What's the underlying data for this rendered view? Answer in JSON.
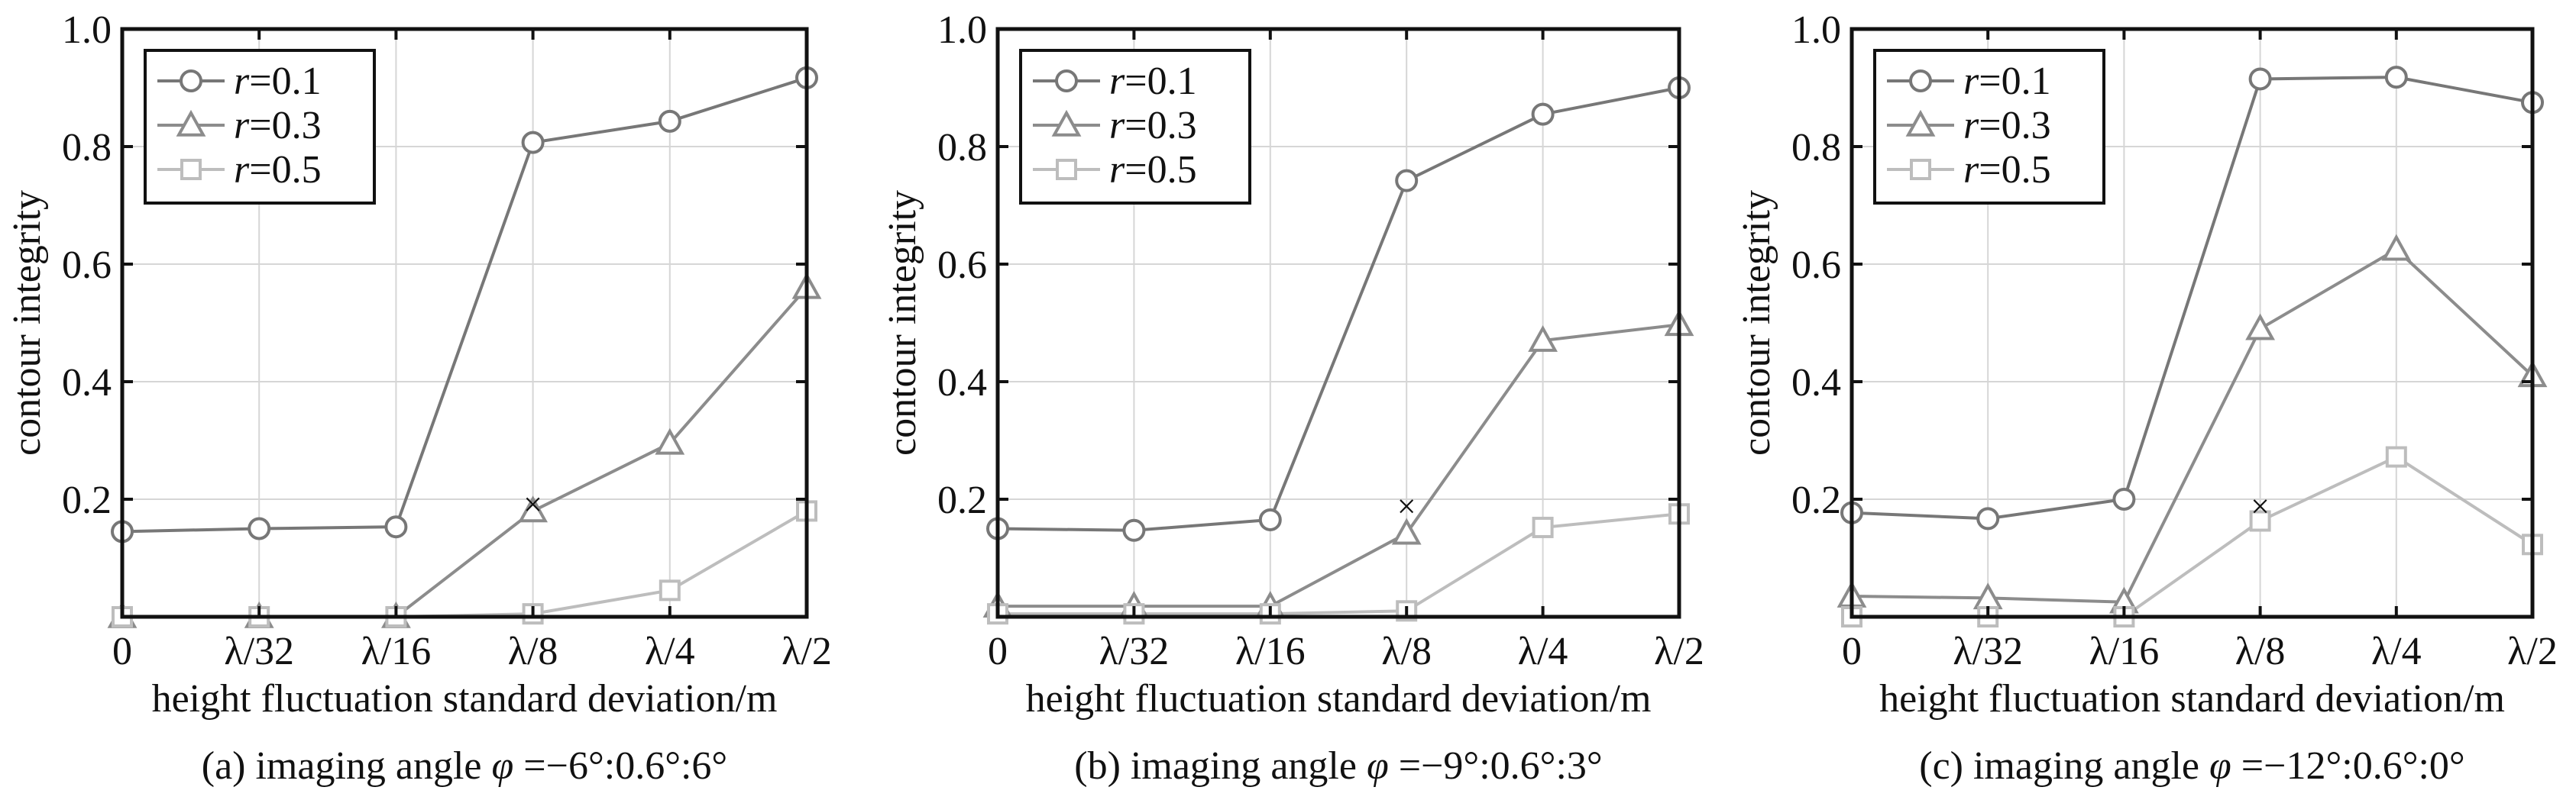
{
  "chart_data": [
    {
      "type": "line",
      "caption": "(a) imaging angle φ =−6°:0.6°:6°",
      "xlabel": "height fluctuation standard deviation/m",
      "ylabel": "contour integrity",
      "categories": [
        "0",
        "λ/32",
        "λ/16",
        "λ/8",
        "λ/4",
        "λ/2"
      ],
      "ylim": [
        0,
        1.0
      ],
      "yticks": [
        "0.2",
        "0.4",
        "0.6",
        "0.8",
        "1.0"
      ],
      "grid": true,
      "legend_position": "top-left",
      "series": [
        {
          "name": "r=0.1",
          "marker": "circle",
          "color": "#777777",
          "values": [
            0.145,
            0.15,
            0.153,
            0.807,
            0.843,
            0.917
          ]
        },
        {
          "name": "r=0.3",
          "marker": "triangle",
          "color": "#8c8c8c",
          "values": [
            0.0,
            0.0,
            0.0,
            0.18,
            0.295,
            0.56
          ]
        },
        {
          "name": "r=0.5",
          "marker": "square",
          "color": "#bdbdbd",
          "values": [
            0.0,
            0.0,
            0.0,
            0.005,
            0.045,
            0.18
          ]
        }
      ],
      "annotation": {
        "marker": "×",
        "x": "λ/8",
        "y": 0.19
      }
    },
    {
      "type": "line",
      "caption": "(b) imaging angle φ =−9°:0.6°:3°",
      "xlabel": "height fluctuation standard deviation/m",
      "ylabel": "contour integrity",
      "categories": [
        "0",
        "λ/32",
        "λ/16",
        "λ/8",
        "λ/4",
        "λ/2"
      ],
      "ylim": [
        0,
        1.0
      ],
      "yticks": [
        "0.2",
        "0.4",
        "0.6",
        "0.8",
        "1.0"
      ],
      "grid": true,
      "legend_position": "top-left",
      "series": [
        {
          "name": "r=0.1",
          "marker": "circle",
          "color": "#777777",
          "values": [
            0.15,
            0.147,
            0.165,
            0.742,
            0.855,
            0.9
          ]
        },
        {
          "name": "r=0.3",
          "marker": "triangle",
          "color": "#8c8c8c",
          "values": [
            0.018,
            0.018,
            0.018,
            0.142,
            0.47,
            0.497
          ]
        },
        {
          "name": "r=0.5",
          "marker": "square",
          "color": "#bdbdbd",
          "values": [
            0.005,
            0.005,
            0.005,
            0.01,
            0.152,
            0.175
          ]
        }
      ],
      "annotation": {
        "marker": "×",
        "x": "λ/8",
        "y": 0.187
      }
    },
    {
      "type": "line",
      "caption": "(c) imaging angle φ =−12°:0.6°:0°",
      "xlabel": "height fluctuation standard deviation/m",
      "ylabel": "contour integrity",
      "categories": [
        "0",
        "λ/32",
        "λ/16",
        "λ/8",
        "λ/4",
        "λ/2"
      ],
      "ylim": [
        0,
        1.0
      ],
      "yticks": [
        "0.2",
        "0.4",
        "0.6",
        "0.8",
        "1.0"
      ],
      "grid": true,
      "legend_position": "top-left",
      "series": [
        {
          "name": "r=0.1",
          "marker": "circle",
          "color": "#777777",
          "values": [
            0.177,
            0.167,
            0.2,
            0.915,
            0.918,
            0.875
          ]
        },
        {
          "name": "r=0.3",
          "marker": "triangle",
          "color": "#8c8c8c",
          "values": [
            0.035,
            0.032,
            0.025,
            0.49,
            0.625,
            0.41
          ]
        },
        {
          "name": "r=0.5",
          "marker": "square",
          "color": "#bdbdbd",
          "values": [
            0.0,
            0.0,
            0.0,
            0.163,
            0.272,
            0.123
          ]
        }
      ],
      "annotation": {
        "marker": "×",
        "x": "λ/8",
        "y": 0.187
      }
    }
  ]
}
